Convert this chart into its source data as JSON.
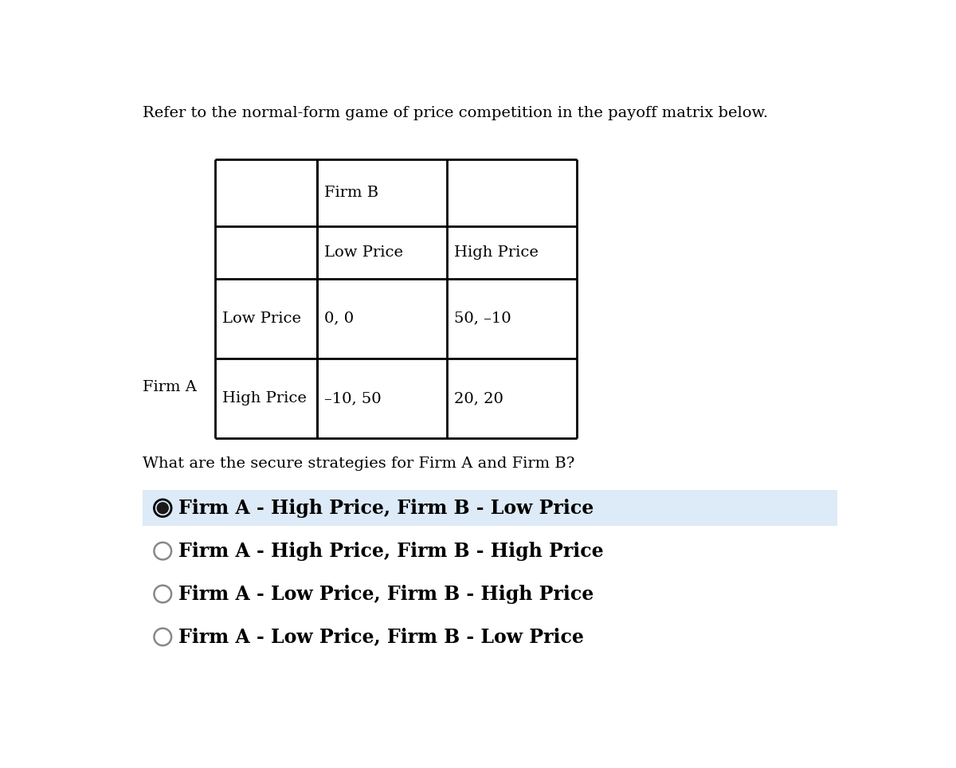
{
  "title_text": "Refer to the normal-form game of price competition in the payoff matrix below.",
  "question_text": "What are the secure strategies for Firm A and Firm B?",
  "firm_b_label": "Firm B",
  "firm_a_label": "Firm A",
  "col_labels": [
    "Low Price",
    "High Price"
  ],
  "row_labels": [
    "Low Price",
    "High Price"
  ],
  "payoffs": [
    [
      "0, 0",
      "50, –10"
    ],
    [
      "–10, 50",
      "20, 20"
    ]
  ],
  "options": [
    "Firm A - High Price, Firm B - Low Price",
    "Firm A - High Price, Firm B - High Price",
    "Firm A - Low Price, Firm B - High Price",
    "Firm A - Low Price, Firm B - Low Price"
  ],
  "selected_option": 0,
  "bg_color": "#ffffff",
  "table_line_color": "#000000",
  "option_selected_bg": "#ddeaf7",
  "option_bg": "#ffffff",
  "text_color": "#000000",
  "title_fontsize": 14,
  "label_fontsize": 14,
  "payoff_fontsize": 14,
  "option_fontsize": 17,
  "question_fontsize": 14
}
